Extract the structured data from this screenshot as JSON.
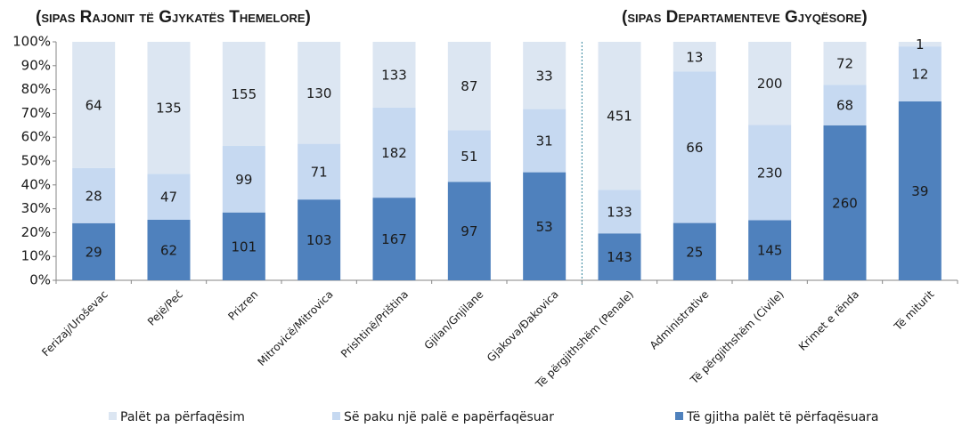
{
  "chart_data": {
    "type": "bar",
    "stacking": "percent",
    "section_titles": [
      "(sipas Rajonit të  Gjykatës Themelore)",
      "(sipas Departamenteve Gjyqësore)"
    ],
    "categories": [
      "Ferizaj/Uroševac",
      "Pejë/Peć",
      "Prizren",
      "Mitrovicë/Mitrovica",
      "Prishtinë/Priština",
      "Gjilan/Gnjilane",
      "Gjakova/Đakovica",
      "Të përgjithshëm (Penale)",
      "Administrative",
      "Të përgjithshëm (Civile)",
      "Krimet e rënda",
      "Të miturit"
    ],
    "series": [
      {
        "name": "Palët pa përfaqësim",
        "color": "#dce6f2",
        "values": [
          64,
          135,
          155,
          130,
          133,
          87,
          33,
          451,
          13,
          200,
          72,
          1
        ]
      },
      {
        "name": "Së paku një palë e papërfaqësuar",
        "color": "#c6d9f1",
        "values": [
          28,
          47,
          99,
          71,
          182,
          51,
          31,
          133,
          66,
          230,
          68,
          12
        ]
      },
      {
        "name": "Të gjitha palët të përfaqësuara",
        "color": "#4f81bd",
        "values": [
          29,
          62,
          101,
          103,
          167,
          97,
          53,
          143,
          25,
          145,
          260,
          39
        ]
      }
    ],
    "ylim": [
      0,
      100
    ],
    "yticks": [
      {
        "value": 0,
        "label": "0%"
      },
      {
        "value": 10,
        "label": "10%"
      },
      {
        "value": 20,
        "label": "20%"
      },
      {
        "value": 30,
        "label": "30%"
      },
      {
        "value": 40,
        "label": "40%"
      },
      {
        "value": 50,
        "label": "50%"
      },
      {
        "value": 60,
        "label": "60%"
      },
      {
        "value": 70,
        "label": "70%"
      },
      {
        "value": 80,
        "label": "80%"
      },
      {
        "value": 90,
        "label": "90%"
      },
      {
        "value": 100,
        "label": "100%"
      }
    ],
    "legend": "bottom"
  }
}
